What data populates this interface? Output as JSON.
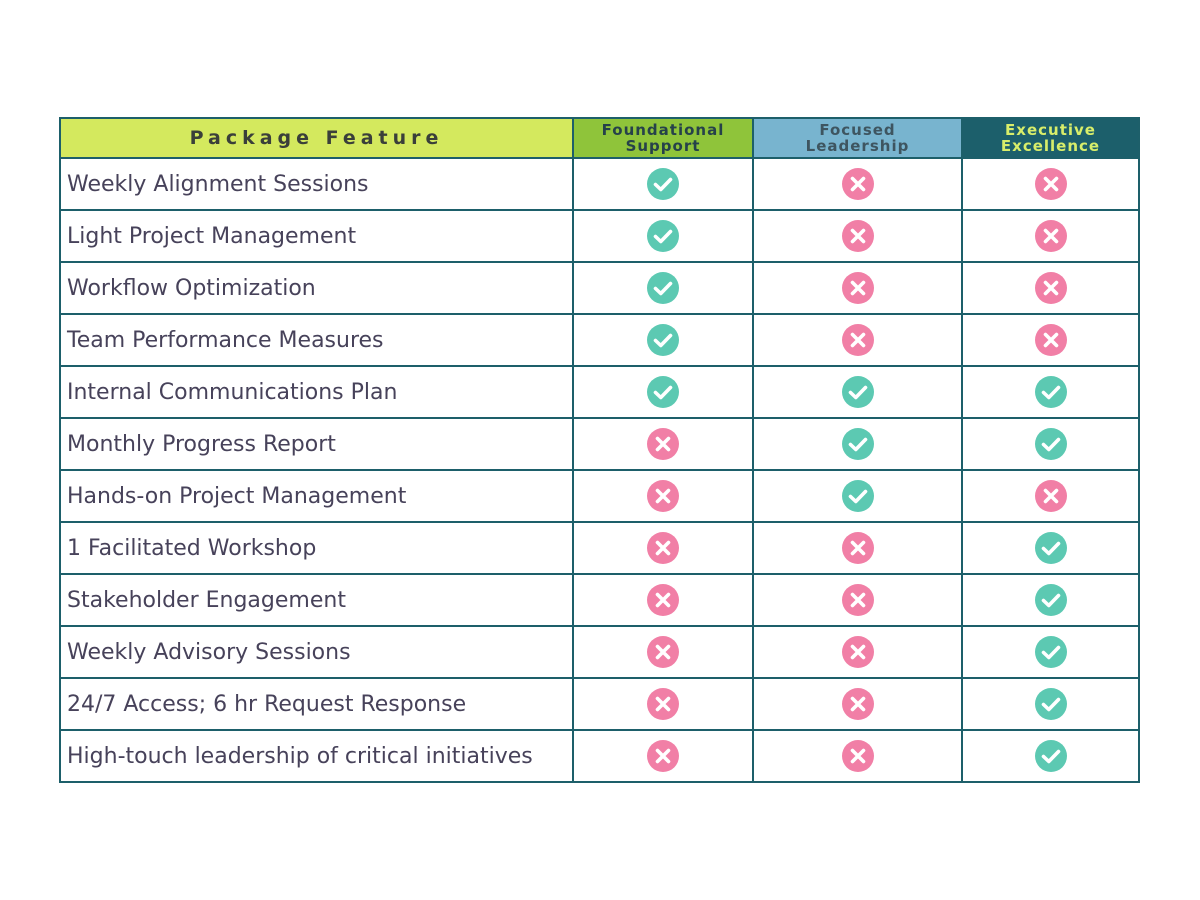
{
  "colors": {
    "border": "#1d5f6a",
    "check": "#5cc9b2",
    "cross": "#f17fa6",
    "header_feature_bg": "#d4e95e",
    "header_foundational_bg": "#8fc43a",
    "header_focused_bg": "#78b4cf",
    "header_executive_bg": "#1c5f6b"
  },
  "header": {
    "feature": "Package Feature",
    "foundational": [
      "Foundational",
      "Support"
    ],
    "focused": [
      "Focused",
      "Leadership"
    ],
    "executive": [
      "Executive",
      "Excellence"
    ]
  },
  "rows": [
    {
      "feature": "Weekly Alignment Sessions",
      "marks": [
        "check",
        "cross",
        "cross"
      ]
    },
    {
      "feature": "Light Project Management",
      "marks": [
        "check",
        "cross",
        "cross"
      ]
    },
    {
      "feature": "Workflow Optimization",
      "marks": [
        "check",
        "cross",
        "cross"
      ]
    },
    {
      "feature": "Team Performance Measures",
      "marks": [
        "check",
        "cross",
        "cross"
      ]
    },
    {
      "feature": "Internal Communications Plan",
      "marks": [
        "check",
        "check",
        "check"
      ]
    },
    {
      "feature": "Monthly Progress Report",
      "marks": [
        "cross",
        "check",
        "check"
      ]
    },
    {
      "feature": "Hands-on Project Management",
      "marks": [
        "cross",
        "check",
        "cross"
      ]
    },
    {
      "feature": "1 Facilitated Workshop",
      "marks": [
        "cross",
        "cross",
        "check"
      ]
    },
    {
      "feature": "Stakeholder Engagement",
      "marks": [
        "cross",
        "cross",
        "check"
      ]
    },
    {
      "feature": "Weekly Advisory Sessions",
      "marks": [
        "cross",
        "cross",
        "check"
      ]
    },
    {
      "feature": "24/7 Access; 6 hr Request Response",
      "marks": [
        "cross",
        "cross",
        "check"
      ]
    },
    {
      "feature": "High-touch leadership of critical initiatives",
      "marks": [
        "cross",
        "cross",
        "check"
      ]
    }
  ]
}
